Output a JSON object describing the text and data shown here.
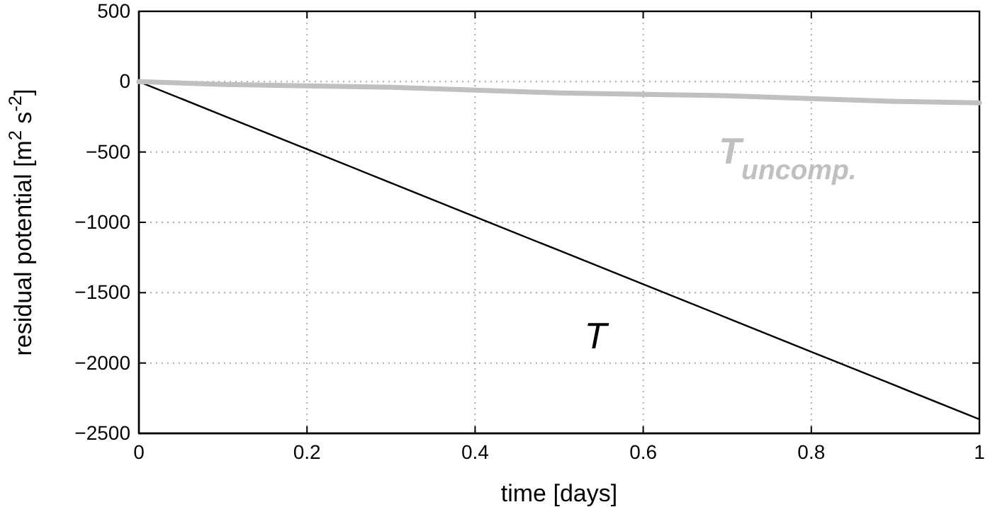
{
  "chart_data": {
    "type": "line",
    "xlabel": "time [days]",
    "ylabel": "residual potential [m$^{2}$ s$^{-2}$]",
    "x": [
      0,
      0.1,
      0.2,
      0.3,
      0.4,
      0.5,
      0.6,
      0.7,
      0.8,
      0.9,
      1
    ],
    "series": [
      {
        "name": "T",
        "color": "#000000",
        "values": [
          0,
          -240,
          -480,
          -720,
          -960,
          -1200,
          -1440,
          -1680,
          -1920,
          -2160,
          -2400
        ]
      },
      {
        "name": "T$_{uncomp.}$",
        "color": "#c0c0c0",
        "values": [
          0,
          -20,
          -30,
          -40,
          -60,
          -80,
          -90,
          -100,
          -120,
          -140,
          -150
        ]
      }
    ],
    "xlim": [
      0,
      1
    ],
    "xticks": [
      0,
      0.2,
      0.4,
      0.6,
      0.8,
      1
    ],
    "ylim": [
      -2500,
      500
    ],
    "yticks": [
      -2500,
      -2000,
      -1500,
      -1000,
      -500,
      0,
      500
    ],
    "grid": true,
    "marker": "none",
    "line_style": "solid"
  }
}
